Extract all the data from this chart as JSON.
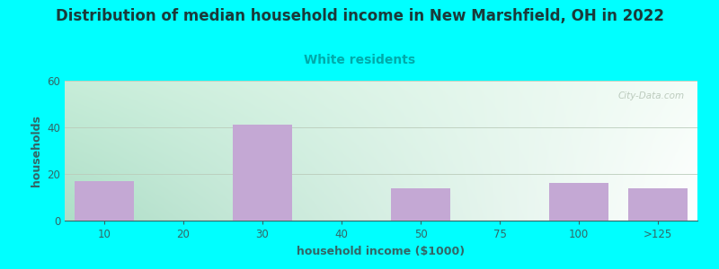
{
  "title": "Distribution of median household income in New Marshfield, OH in 2022",
  "subtitle": "White residents",
  "xlabel": "household income ($1000)",
  "ylabel": "households",
  "bar_labels": [
    "10",
    "20",
    "30",
    "40",
    "50",
    "75",
    "100",
    ">125"
  ],
  "bar_values": [
    17,
    0,
    41,
    0,
    14,
    0,
    16,
    14
  ],
  "bar_color": "#C4A8D4",
  "background_color": "#00FFFF",
  "plot_bg_color_topleft": "#C8EED8",
  "plot_bg_color_topright": "#F0F8F0",
  "plot_bg_color_bottomleft": "#A8DCC8",
  "plot_bg_color_bottomright": "#FFFFFF",
  "title_color": "#1A3A3A",
  "subtitle_color": "#00AAAA",
  "axis_label_color": "#336666",
  "tick_label_color": "#336666",
  "ylim": [
    0,
    60
  ],
  "yticks": [
    0,
    20,
    40,
    60
  ],
  "title_fontsize": 12,
  "subtitle_fontsize": 10,
  "label_fontsize": 9,
  "tick_fontsize": 8.5,
  "watermark": "City-Data.com",
  "grid_color": "#BBCCBB"
}
